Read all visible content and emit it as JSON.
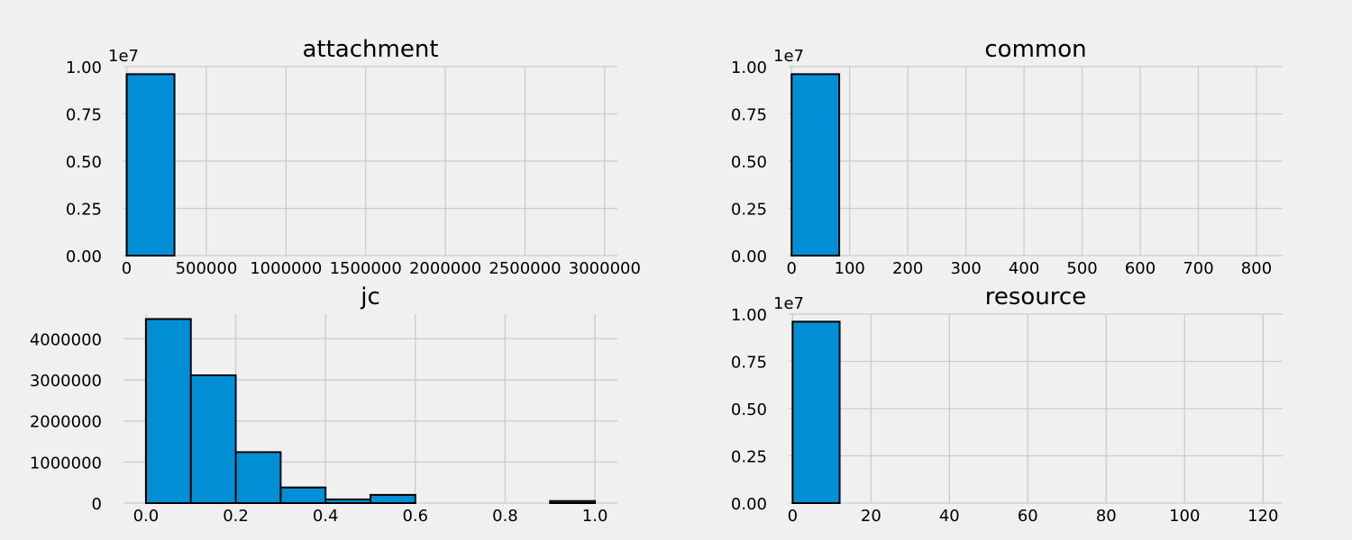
{
  "chart_data": [
    {
      "type": "bar",
      "title": "attachment",
      "xlim": [
        -20000,
        3080000
      ],
      "ylim": [
        0,
        10000000
      ],
      "xticks": [
        0,
        500000,
        1000000,
        1500000,
        2000000,
        2500000,
        3000000
      ],
      "xtick_labels": [
        "0",
        "500000",
        "1000000",
        "1500000",
        "2000000",
        "2500000",
        "3000000"
      ],
      "yticks": [
        0,
        2500000,
        5000000,
        7500000,
        10000000
      ],
      "ytick_labels": [
        "0.00",
        "0.25",
        "0.50",
        "0.75",
        "1.00"
      ],
      "offset_label": "1e7",
      "bin_edges": [
        0,
        300000,
        600000,
        900000,
        1200000,
        1500000,
        1800000,
        2100000,
        2400000,
        2700000,
        3000000
      ],
      "values": [
        9600000,
        0,
        0,
        0,
        0,
        0,
        0,
        0,
        0,
        0
      ],
      "grid": true
    },
    {
      "type": "bar",
      "title": "common",
      "xlim": [
        -5,
        845
      ],
      "ylim": [
        0,
        10000000
      ],
      "xticks": [
        0,
        100,
        200,
        300,
        400,
        500,
        600,
        700,
        800
      ],
      "xtick_labels": [
        "0",
        "100",
        "200",
        "300",
        "400",
        "500",
        "600",
        "700",
        "800"
      ],
      "yticks": [
        0,
        2500000,
        5000000,
        7500000,
        10000000
      ],
      "ytick_labels": [
        "0.00",
        "0.25",
        "0.50",
        "0.75",
        "1.00"
      ],
      "offset_label": "1e7",
      "bin_edges": [
        0,
        82,
        164,
        246,
        328,
        410,
        492,
        574,
        656,
        738,
        820
      ],
      "values": [
        9600000,
        0,
        0,
        0,
        0,
        0,
        0,
        0,
        0,
        0
      ],
      "grid": true
    },
    {
      "type": "bar",
      "title": "jc",
      "xlim": [
        -0.05,
        1.05
      ],
      "ylim": [
        0,
        4600000
      ],
      "xticks": [
        0,
        0.2,
        0.4,
        0.6,
        0.8,
        1.0
      ],
      "xtick_labels": [
        "0.0",
        "0.2",
        "0.4",
        "0.6",
        "0.8",
        "1.0"
      ],
      "yticks": [
        0,
        1000000,
        2000000,
        3000000,
        4000000
      ],
      "ytick_labels": [
        "0",
        "1000000",
        "2000000",
        "3000000",
        "4000000"
      ],
      "offset_label": "",
      "bin_edges": [
        0,
        0.1,
        0.2,
        0.3,
        0.4,
        0.5,
        0.6,
        0.7,
        0.8,
        0.9,
        1.0
      ],
      "values": [
        4480000,
        3110000,
        1240000,
        380000,
        90000,
        200000,
        0,
        0,
        0,
        50000
      ],
      "grid": true
    },
    {
      "type": "bar",
      "title": "resource",
      "xlim": [
        -1,
        125
      ],
      "ylim": [
        0,
        10000000
      ],
      "xticks": [
        0,
        20,
        40,
        60,
        80,
        100,
        120
      ],
      "xtick_labels": [
        "0",
        "20",
        "40",
        "60",
        "80",
        "100",
        "120"
      ],
      "yticks": [
        0,
        2500000,
        5000000,
        7500000,
        10000000
      ],
      "ytick_labels": [
        "0.00",
        "0.25",
        "0.50",
        "0.75",
        "1.00"
      ],
      "offset_label": "1e7",
      "bin_edges": [
        0,
        12,
        24,
        36,
        48,
        60,
        72,
        84,
        96,
        108,
        120
      ],
      "values": [
        9600000,
        0,
        0,
        0,
        0,
        0,
        0,
        0,
        0,
        0
      ],
      "grid": true
    }
  ]
}
